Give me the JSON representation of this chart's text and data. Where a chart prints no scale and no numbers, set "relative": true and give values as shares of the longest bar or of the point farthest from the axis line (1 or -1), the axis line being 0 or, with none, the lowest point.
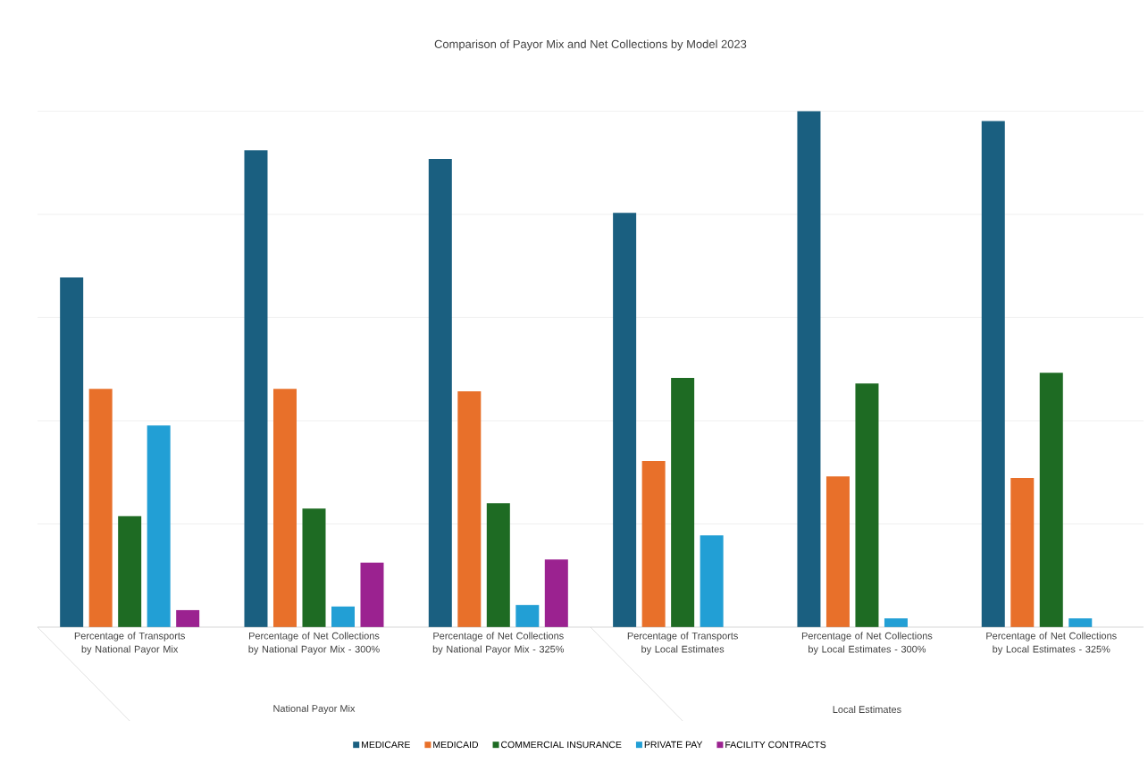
{
  "chart_data": {
    "type": "bar",
    "title": "Comparison of Payor Mix and Net Collections by Model 2023",
    "categories": [
      "Percentage of Transports by National Payor Mix",
      "Percentage of Net Collections by National Payor Mix - 300%",
      "Percentage of Net Collections by National Payor Mix - 325%",
      "Percentage of Transports by Local Estimates",
      "Percentage of Net Collections by Local Estimates - 300%",
      "Percentage of Net Collections by Local Estimates - 325%"
    ],
    "series": [
      {
        "name": "MEDICARE",
        "color": "#1a5f80",
        "values": [
          0.678,
          0.924,
          0.907,
          0.803,
          1,
          0.981
        ]
      },
      {
        "name": "MEDICAID",
        "color": "#e8702a",
        "values": [
          0.462,
          0.462,
          0.457,
          0.322,
          0.292,
          0.289
        ]
      },
      {
        "name": "COMMERCIAL INSURANCE",
        "color": "#1e6b23",
        "values": [
          0.215,
          0.23,
          0.24,
          0.483,
          0.472,
          0.493
        ]
      },
      {
        "name": "PRIVATE PAY",
        "color": "#229fd5",
        "values": [
          0.391,
          0.04,
          0.043,
          0.178,
          0.017,
          0.017
        ]
      },
      {
        "name": "FACILITY CONTRACTS",
        "color": "#9b2290",
        "values": [
          0.033,
          0.125,
          0.131,
          null,
          null,
          null
        ]
      }
    ],
    "annotations": [
      "National Payor Mix",
      "Local Estimates"
    ],
    "relative": true,
    "grid": "y",
    "legend": "bottom"
  }
}
